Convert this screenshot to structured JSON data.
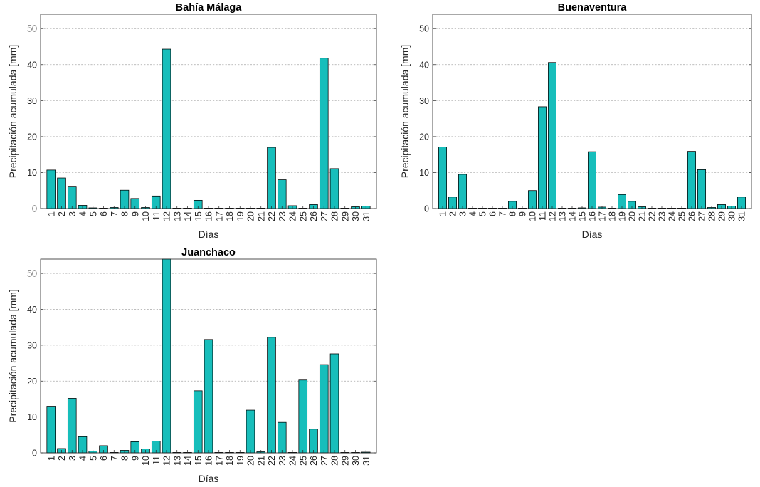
{
  "chart_data": [
    {
      "type": "bar",
      "title": "Bahía Málaga",
      "xlabel": "Días",
      "ylabel": "Precipitación acumulada [mm]",
      "ylim": [
        0,
        54
      ],
      "yticks": [
        0,
        10,
        20,
        30,
        40,
        50
      ],
      "grid": "y dashed",
      "bar_color": "#17bebb",
      "categories": [
        "1",
        "2",
        "3",
        "4",
        "5",
        "6",
        "7",
        "8",
        "9",
        "10",
        "11",
        "12",
        "13",
        "14",
        "15",
        "16",
        "17",
        "18",
        "19",
        "20",
        "21",
        "22",
        "23",
        "24",
        "25",
        "26",
        "27",
        "28",
        "29",
        "30",
        "31"
      ],
      "values": [
        10.7,
        8.5,
        6.2,
        0.9,
        0.2,
        0,
        0.3,
        5.1,
        2.8,
        0.3,
        3.5,
        44.3,
        0.1,
        0,
        2.3,
        0,
        0,
        0,
        0,
        0,
        0,
        17.0,
        8.0,
        0.8,
        0,
        1.1,
        41.8,
        11.1,
        0,
        0.5,
        0.7
      ]
    },
    {
      "type": "bar",
      "title": "Buenaventura",
      "xlabel": "Días",
      "ylabel": "Precipitación acumulada [mm]",
      "ylim": [
        0,
        54
      ],
      "yticks": [
        0,
        10,
        20,
        30,
        40,
        50
      ],
      "grid": "y dashed",
      "bar_color": "#17bebb",
      "categories": [
        "1",
        "2",
        "3",
        "4",
        "5",
        "6",
        "7",
        "8",
        "9",
        "10",
        "11",
        "12",
        "13",
        "14",
        "15",
        "16",
        "17",
        "18",
        "19",
        "20",
        "21",
        "22",
        "23",
        "24",
        "25",
        "26",
        "27",
        "28",
        "29",
        "30",
        "31"
      ],
      "values": [
        17.1,
        3.2,
        9.5,
        0,
        0,
        0,
        0,
        2.0,
        0,
        5.0,
        28.3,
        40.6,
        0,
        0,
        0.2,
        15.8,
        0.4,
        0,
        3.9,
        2.0,
        0.5,
        0,
        0,
        0,
        0,
        15.9,
        10.8,
        0.3,
        1.1,
        0.7,
        3.2
      ]
    },
    {
      "type": "bar",
      "title": "Juanchaco",
      "xlabel": "Días",
      "ylabel": "Precipitación acumulada [mm]",
      "ylim": [
        0,
        54
      ],
      "yticks": [
        0,
        10,
        20,
        30,
        40,
        50
      ],
      "grid": "y dashed",
      "bar_color": "#17bebb",
      "categories": [
        "1",
        "2",
        "3",
        "4",
        "5",
        "6",
        "7",
        "8",
        "9",
        "10",
        "11",
        "12",
        "13",
        "14",
        "15",
        "16",
        "17",
        "18",
        "19",
        "20",
        "21",
        "22",
        "23",
        "24",
        "25",
        "26",
        "27",
        "28",
        "29",
        "30",
        "31"
      ],
      "values": [
        13.0,
        1.2,
        15.2,
        4.5,
        0.5,
        2.0,
        0,
        0.7,
        3.1,
        1.1,
        3.3,
        54.0,
        0,
        0,
        17.3,
        31.6,
        0,
        0,
        0,
        11.9,
        0.3,
        32.2,
        8.5,
        0,
        20.3,
        6.6,
        24.6,
        27.6,
        0,
        0,
        0.2
      ]
    }
  ]
}
